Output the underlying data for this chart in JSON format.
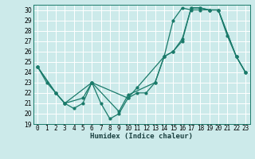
{
  "title": "",
  "xlabel": "Humidex (Indice chaleur)",
  "ylabel": "",
  "bg_color": "#cceaea",
  "grid_color": "#ffffff",
  "line_color": "#1a7a6a",
  "xlim": [
    -0.5,
    23.5
  ],
  "ylim": [
    19,
    30.5
  ],
  "yticks": [
    19,
    20,
    21,
    22,
    23,
    24,
    25,
    26,
    27,
    28,
    29,
    30
  ],
  "xticks": [
    0,
    1,
    2,
    3,
    4,
    5,
    6,
    7,
    8,
    9,
    10,
    11,
    12,
    13,
    14,
    15,
    16,
    17,
    18,
    19,
    20,
    21,
    22,
    23
  ],
  "series1_x": [
    0,
    1,
    2,
    3,
    4,
    5,
    6,
    7,
    8,
    9,
    10,
    11,
    12,
    13,
    14,
    15,
    16,
    17,
    18,
    19,
    20,
    21,
    22,
    23
  ],
  "series1_y": [
    24.5,
    23.0,
    22.0,
    21.0,
    20.5,
    21.0,
    23.0,
    21.0,
    19.5,
    20.0,
    21.5,
    22.0,
    22.0,
    23.0,
    25.5,
    26.0,
    27.0,
    30.2,
    30.2,
    30.0,
    30.0,
    27.5,
    25.5,
    24.0
  ],
  "series2_x": [
    0,
    2,
    3,
    6,
    10,
    11,
    14,
    15,
    16,
    17,
    18,
    19,
    20,
    22,
    23
  ],
  "series2_y": [
    24.5,
    22.0,
    21.0,
    23.0,
    21.5,
    22.5,
    25.5,
    29.0,
    30.2,
    30.0,
    30.0,
    30.0,
    30.0,
    25.5,
    24.0
  ],
  "series3_x": [
    0,
    2,
    3,
    5,
    6,
    9,
    10,
    13,
    14,
    15,
    16,
    17,
    18,
    19,
    20,
    22,
    23
  ],
  "series3_y": [
    24.5,
    22.0,
    21.0,
    21.5,
    23.0,
    20.2,
    21.8,
    23.0,
    25.5,
    26.0,
    27.2,
    30.2,
    30.2,
    30.0,
    30.0,
    25.5,
    24.0
  ],
  "tick_fontsize": 5.5,
  "xlabel_fontsize": 6.5,
  "lw": 0.9,
  "ms": 2.0
}
